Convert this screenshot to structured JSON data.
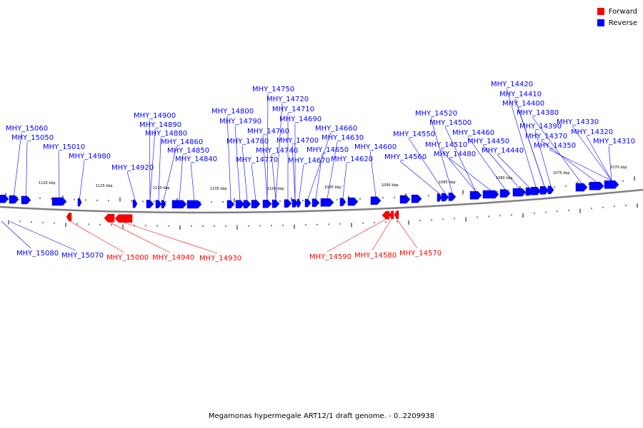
{
  "title": "Megamonas hypermegale ART12/1 draft genome. - 0..2209938",
  "legend": [
    {
      "label": "Forward",
      "color": "#ff0000"
    },
    {
      "label": "Reverse",
      "color": "#0000ff"
    }
  ],
  "colors": {
    "forward": "#ff0000",
    "reverse": "#0000ff",
    "backbone": "#808080"
  },
  "scale_labels": [
    "1120 kbp",
    "1115 kbp",
    "1110 kbp",
    "1105 kbp",
    "1100 kbp",
    "1095 kbp",
    "1090 kbp",
    "1085 kbp",
    "1080 kbp",
    "1075 kbp",
    "1070 kbp"
  ],
  "genes_reverse": [
    "MHY_15060",
    "MHY_15050",
    "MHY_15010",
    "MHY_14980",
    "MHY_14920",
    "MHY_14900",
    "MHY_14890",
    "MHY_14880",
    "MHY_14860",
    "MHY_14850",
    "MHY_14840",
    "MHY_14800",
    "MHY_14790",
    "MHY_14780",
    "MHY_14770",
    "MHY_14760",
    "MHY_14750",
    "MHY_14740",
    "MHY_14720",
    "MHY_14710",
    "MHY_14700",
    "MHY_14690",
    "MHY_14670",
    "MHY_14660",
    "MHY_14650",
    "MHY_14630",
    "MHY_14620",
    "MHY_14600",
    "MHY_14560",
    "MHY_14550",
    "MHY_14520",
    "MHY_14510",
    "MHY_14500",
    "MHY_14480",
    "MHY_14460",
    "MHY_14450",
    "MHY_14440",
    "MHY_14420",
    "MHY_14410",
    "MHY_14400",
    "MHY_14390",
    "MHY_14380",
    "MHY_14370",
    "MHY_14350",
    "MHY_14330",
    "MHY_14320",
    "MHY_14310",
    "MHY_15080",
    "MHY_15070"
  ],
  "genes_forward": [
    "MHY_15000",
    "MHY_14940",
    "MHY_14930",
    "MHY_14590",
    "MHY_14580",
    "MHY_14570"
  ]
}
